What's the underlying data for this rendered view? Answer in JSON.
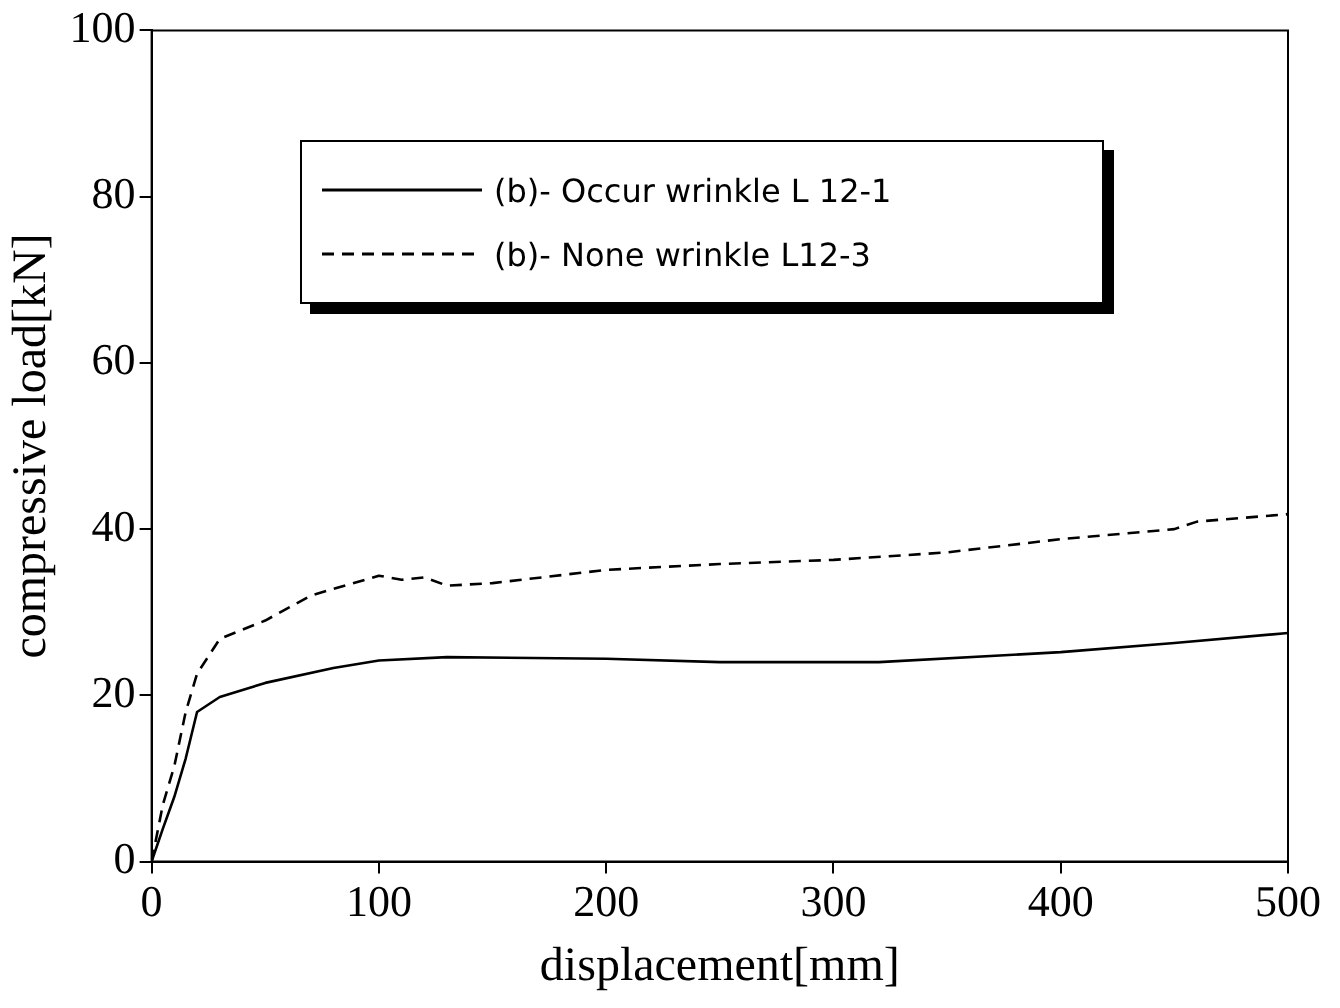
{
  "chart_data": {
    "type": "line",
    "xlabel": "displacement[mm]",
    "ylabel": "compressive load[kN]",
    "xlim": [
      0,
      500
    ],
    "ylim": [
      0,
      100
    ],
    "xticks": [
      0,
      100,
      200,
      300,
      400,
      500
    ],
    "yticks": [
      0,
      20,
      40,
      60,
      80,
      100
    ],
    "grid": false,
    "legend": "top",
    "marker": "none",
    "series": [
      {
        "name": "(b)- Occur wrinkle L 12-1",
        "color": "#000000",
        "line_style": "solid",
        "x": [
          0,
          5,
          10,
          15,
          20,
          30,
          50,
          80,
          100,
          130,
          200,
          250,
          320,
          400,
          450,
          500
        ],
        "values": [
          0,
          4,
          7.8,
          12.4,
          18,
          19.8,
          21.5,
          23.3,
          24.2,
          24.6,
          24.4,
          24,
          24,
          25.2,
          26.3,
          27.5
        ]
      },
      {
        "name": "(b)- None wrinkle L12-3",
        "color": "#000000",
        "line_style": "dashed",
        "x": [
          0,
          5,
          10,
          15,
          20,
          30,
          50,
          70,
          100,
          110,
          120,
          130,
          150,
          200,
          250,
          300,
          350,
          400,
          450,
          460,
          500
        ],
        "values": [
          0,
          6.9,
          11.5,
          18,
          22.6,
          26.8,
          29,
          32,
          34.4,
          33.9,
          34.2,
          33.2,
          33.5,
          35.1,
          35.8,
          36.3,
          37.2,
          38.8,
          40,
          40.9,
          41.8
        ]
      }
    ]
  }
}
